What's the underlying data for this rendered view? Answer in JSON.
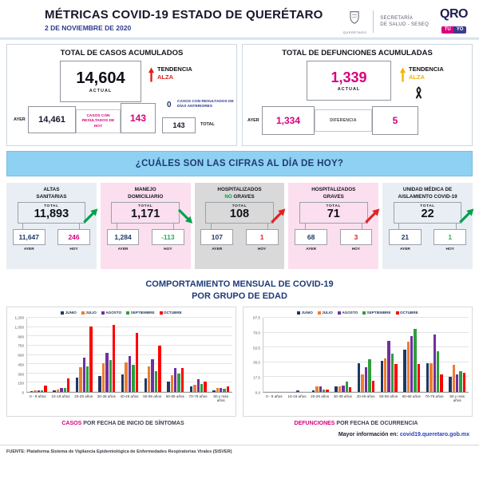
{
  "header": {
    "title": "MÉTRICAS COVID-19 ESTADO DE QUERÉTARO",
    "date": "2 DE NOVIEMBRE DE 2020",
    "coat_of_arms_caption": "QUERÉTARO",
    "secretaria_line1": "SECRETARÍA",
    "secretaria_line2": "DE SALUD - SESEQ",
    "qro": "QRO",
    "badge_tu": "TÚ",
    "badge_yo": "YO"
  },
  "totals": {
    "casos": {
      "title": "TOTAL DE CASOS ACUMULADOS",
      "actual": "14,604",
      "actual_label": "ACTUAL",
      "ayer_label": "AYER",
      "ayer": "14,461",
      "resultados_hoy_label": "CASOS CON RESULTADOS DE HOY",
      "resultados_hoy": "143",
      "dias_anteriores": "0",
      "dias_anteriores_label": "CASOS CON RESULTADOS DE DÍAS ANTERIORES",
      "total": "143",
      "total_label": "TOTAL",
      "tendencia_label": "TENDENCIA",
      "tendencia_value": "ALZA"
    },
    "defunciones": {
      "title": "TOTAL DE DEFUNCIONES ACUMULADAS",
      "actual": "1,339",
      "actual_label": "ACTUAL",
      "ayer_label": "AYER",
      "ayer": "1,334",
      "diferencia_label": "DIFERENCIA",
      "diferencia": "5",
      "tendencia_label": "TENDENCIA",
      "tendencia_value": "ALZA"
    }
  },
  "banner": {
    "question": "¿CUÁLES SON LAS CIFRAS AL DÍA DE HOY?"
  },
  "cards": [
    {
      "title1": "ALTAS",
      "title2_hl": "",
      "title2": "SANITARIAS",
      "total_label": "TOTAL",
      "total": "11,893",
      "ayer": "11,647",
      "hoy": "246",
      "ayer_label": "AYER",
      "hoy_label": "HOY",
      "trend": "up",
      "trend_color": "#00a14b",
      "hoy_color": "#d6007f",
      "bg": "#e9eef5"
    },
    {
      "title1": "MANEJO",
      "title2_hl": "",
      "title2": "DOMICILIARIO",
      "total_label": "TOTAL",
      "total": "1,171",
      "ayer": "1,284",
      "hoy": "-113",
      "ayer_label": "AYER",
      "hoy_label": "HOY",
      "trend": "down",
      "trend_color": "#00a14b",
      "hoy_color": "#2faa5c",
      "bg": "#fbdfee"
    },
    {
      "title1": "HOSPITALIZADOS",
      "title2_hl": "NO ",
      "title2": "GRAVES",
      "total_label": "TOTAL",
      "total": "108",
      "ayer": "107",
      "hoy": "1",
      "ayer_label": "AYER",
      "hoy_label": "HOY",
      "trend": "up",
      "trend_color": "#e02424",
      "hoy_color": "#e02424",
      "bg": "#d9d9d9"
    },
    {
      "title1": "HOSPITALIZADOS",
      "title2_hl": "",
      "title2": "GRAVES",
      "total_label": "TOTAL",
      "total": "71",
      "ayer": "68",
      "hoy": "3",
      "ayer_label": "AYER",
      "hoy_label": "HOY",
      "trend": "up",
      "trend_color": "#e02424",
      "hoy_color": "#e02424",
      "bg": "#fbdfee"
    },
    {
      "title1": "UNIDAD MÉDICA DE",
      "title2_hl": "",
      "title2": "AISLAMIENTO COVID-19",
      "total_label": "TOTAL",
      "total": "22",
      "ayer": "21",
      "hoy": "1",
      "ayer_label": "AYER",
      "hoy_label": "HOY",
      "trend": "up",
      "trend_color": "#00a14b",
      "hoy_color": "#2faa5c",
      "bg": "#e9eef5"
    }
  ],
  "charts_section": {
    "title_line1": "COMPORTAMIENTO MENSUAL DE COVID-19",
    "title_line2": "POR GRUPO DE EDAD",
    "more_info_label": "Mayor información en:",
    "more_info_link": "covid19.queretaro.gob.mx"
  },
  "chart_data": [
    {
      "type": "bar",
      "caption": {
        "highlight": "CASOS",
        "rest": " POR FECHA DE INICIO DE SÍNTOMAS"
      },
      "categories": [
        "0 - 9 años",
        "10-19 años",
        "20-29 años",
        "30-39 años",
        "40-49 años",
        "50-59 años",
        "60-69 años",
        "70-79 años",
        "80 y más años"
      ],
      "series": [
        {
          "name": "JUNIO",
          "color": "#1f3864",
          "values": [
            15,
            25,
            235,
            260,
            285,
            225,
            165,
            90,
            30
          ]
        },
        {
          "name": "JULIO",
          "color": "#ed7d31",
          "values": [
            25,
            35,
            405,
            460,
            475,
            415,
            270,
            120,
            70
          ]
        },
        {
          "name": "AGOSTO",
          "color": "#7030a0",
          "values": [
            25,
            70,
            550,
            630,
            585,
            530,
            390,
            205,
            60
          ]
        },
        {
          "name": "SEPTIEMBRE",
          "color": "#2e9e3c",
          "values": [
            25,
            60,
            415,
            520,
            435,
            340,
            300,
            135,
            55
          ]
        },
        {
          "name": "OCTUBRE",
          "color": "#fe0000",
          "values": [
            100,
            215,
            1055,
            1090,
            960,
            750,
            390,
            170,
            90
          ]
        }
      ],
      "ylim": [
        0,
        1200
      ],
      "yticks": [
        {
          "label": "0",
          "value": 0
        },
        {
          "label": "150",
          "value": 150
        },
        {
          "label": "300",
          "value": 300
        },
        {
          "label": "450",
          "value": 450
        },
        {
          "label": "600",
          "value": 600
        },
        {
          "label": "750",
          "value": 750
        },
        {
          "label": "900",
          "value": 900
        },
        {
          "label": "1,050",
          "value": 1050
        },
        {
          "label": "1,200",
          "value": 1200
        }
      ],
      "grid": true,
      "legend_position": "top"
    },
    {
      "type": "bar",
      "caption": {
        "highlight": "DEFUNCIONES",
        "rest": " POR FECHA DE OCURRENCIA"
      },
      "categories": [
        "0 - 9 años",
        "10-19 años",
        "20-29 años",
        "30-39 años",
        "40-49 años",
        "50-59 años",
        "60-69 años",
        "70-79 años",
        "80 y más años"
      ],
      "series": [
        {
          "name": "JUNIO",
          "color": "#1f3864",
          "values": [
            0,
            0,
            2,
            7,
            34,
            37,
            50,
            34,
            18
          ]
        },
        {
          "name": "JULIO",
          "color": "#ed7d31",
          "values": [
            0,
            0,
            7,
            7,
            21,
            40,
            59,
            34,
            32
          ]
        },
        {
          "name": "AGOSTO",
          "color": "#7030a0",
          "values": [
            0,
            2,
            7,
            8,
            29,
            60,
            66,
            68,
            21
          ]
        },
        {
          "name": "SEPTIEMBRE",
          "color": "#2e9e3c",
          "values": [
            0,
            0,
            3,
            12,
            39,
            45,
            74,
            48,
            25
          ]
        },
        {
          "name": "OCTUBRE",
          "color": "#fe0000",
          "values": [
            0,
            0,
            3,
            6,
            13,
            33,
            33,
            21,
            23
          ]
        }
      ],
      "ylim": [
        0,
        87.5
      ],
      "yticks": [
        {
          "label": "0.0",
          "value": 0
        },
        {
          "label": "17.5",
          "value": 17.5
        },
        {
          "label": "35.0",
          "value": 35
        },
        {
          "label": "52.5",
          "value": 52.5
        },
        {
          "label": "70.0",
          "value": 70
        },
        {
          "label": "87.5",
          "value": 87.5
        }
      ],
      "grid": true,
      "legend_position": "top"
    }
  ],
  "footer": {
    "fuente": "FUENTE: Plataforma Sistema  de Vigilancia Epidemiológica de Enfermedades Respiratorias Virales (SISVER)"
  }
}
